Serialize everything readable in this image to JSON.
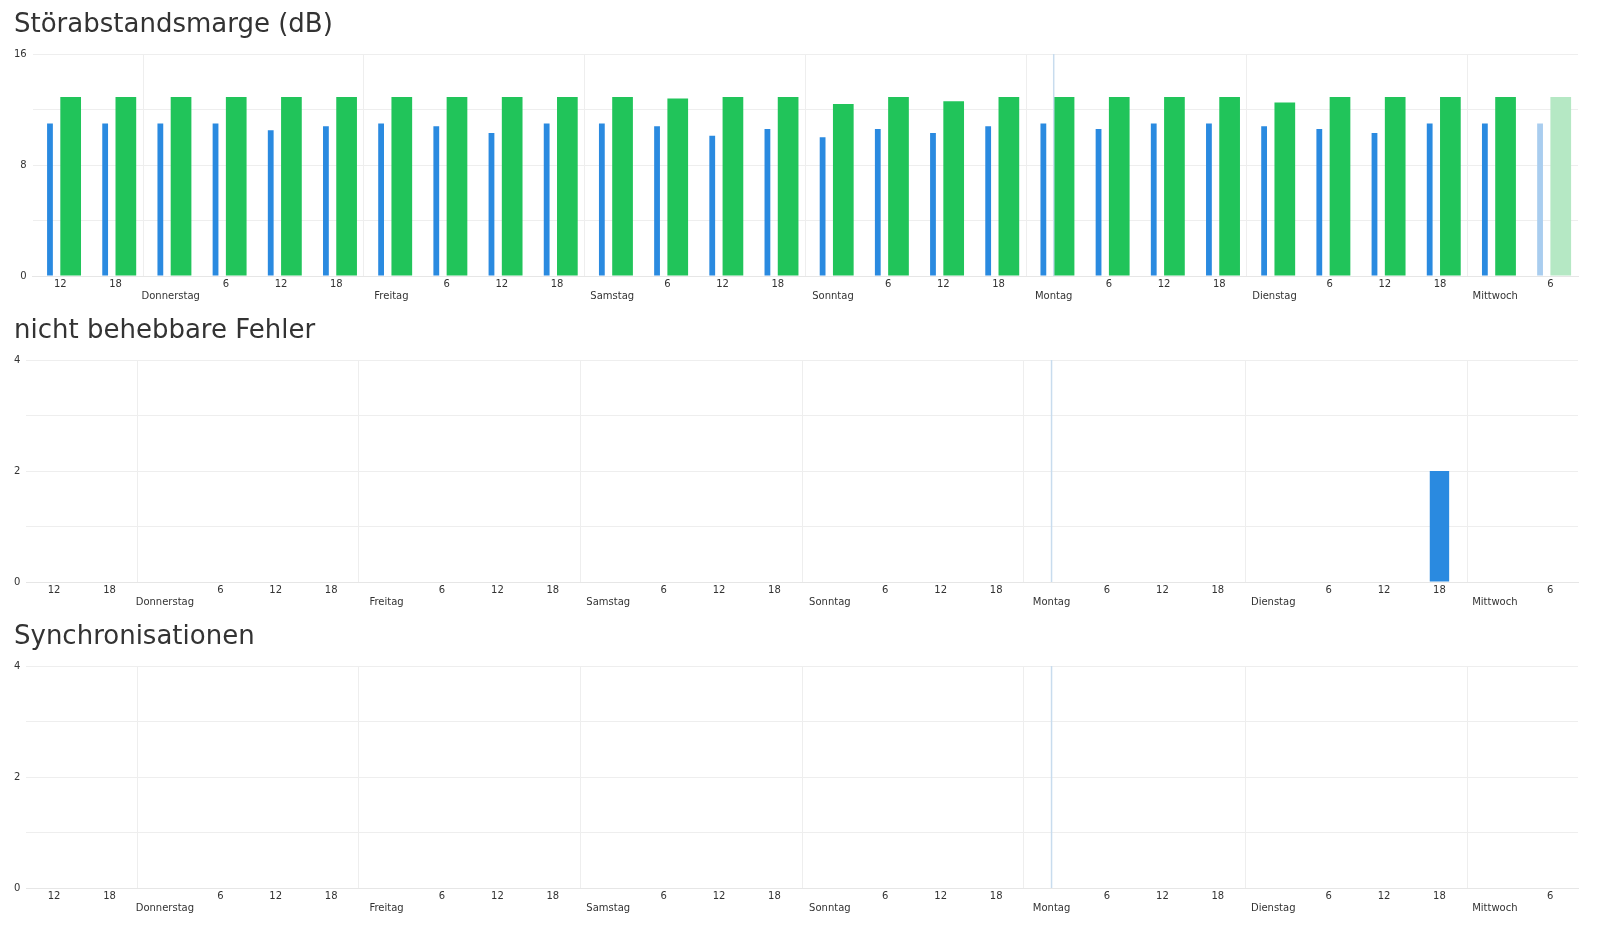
{
  "chart_data": [
    {
      "type": "bar",
      "title": "Störabstandsmarge (dB)",
      "categories": [
        "12",
        "18",
        "Donnerstag",
        "6",
        "12",
        "18",
        "Freitag",
        "6",
        "12",
        "18",
        "Samstag",
        "6",
        "12",
        "18",
        "Sonntag",
        "6",
        "12",
        "18",
        "Montag",
        "6",
        "12",
        "18",
        "Dienstag",
        "6",
        "12",
        "18",
        "Mittwoch",
        "6"
      ],
      "series": [
        {
          "colors": [
            "#2a8ae0",
            "#2a8ae0",
            "#2a8ae0",
            "#2a8ae0",
            "#2a8ae0",
            "#2a8ae0",
            "#2a8ae0",
            "#2a8ae0",
            "#2a8ae0",
            "#2a8ae0",
            "#2a8ae0",
            "#2a8ae0",
            "#2a8ae0",
            "#2a8ae0",
            "#2a8ae0",
            "#2a8ae0",
            "#2a8ae0",
            "#2a8ae0",
            "#2a8ae0",
            "#2a8ae0",
            "#2a8ae0",
            "#2a8ae0",
            "#2a8ae0",
            "#2a8ae0",
            "#2a8ae0",
            "#2a8ae0",
            "#2a8ae0",
            "#a9cdef"
          ],
          "values": [
            11.0,
            11.0,
            11.0,
            11.0,
            10.5,
            10.8,
            11.0,
            10.8,
            10.3,
            11.0,
            11.0,
            10.8,
            10.1,
            10.6,
            10.0,
            10.6,
            10.3,
            10.8,
            11.0,
            10.6,
            11.0,
            11.0,
            10.8,
            10.6,
            10.3,
            11.0,
            11.0,
            11.0
          ]
        },
        {
          "colors": [
            "#21c45a",
            "#21c45a",
            "#21c45a",
            "#21c45a",
            "#21c45a",
            "#21c45a",
            "#21c45a",
            "#21c45a",
            "#21c45a",
            "#21c45a",
            "#21c45a",
            "#21c45a",
            "#21c45a",
            "#21c45a",
            "#21c45a",
            "#21c45a",
            "#21c45a",
            "#21c45a",
            "#21c45a",
            "#21c45a",
            "#21c45a",
            "#21c45a",
            "#21c45a",
            "#21c45a",
            "#21c45a",
            "#21c45a",
            "#21c45a",
            "#b5e8c4"
          ],
          "values": [
            12.9,
            12.9,
            12.9,
            12.9,
            12.9,
            12.9,
            12.9,
            12.9,
            12.9,
            12.9,
            12.9,
            12.8,
            12.9,
            12.9,
            12.4,
            12.9,
            12.6,
            12.9,
            12.9,
            12.9,
            12.9,
            12.9,
            12.5,
            12.9,
            12.9,
            12.9,
            12.9,
            12.9
          ]
        }
      ],
      "ylim": [
        0,
        16
      ],
      "yticks": [
        0,
        {
          "value": 4,
          "label": null
        },
        8,
        {
          "value": 12,
          "label": null
        },
        16
      ],
      "grid": true,
      "legend": false,
      "ref_lines": [
        {
          "axis": "x",
          "value": "Montag",
          "color": "#c8dcee"
        }
      ]
    },
    {
      "type": "bar",
      "title": "nicht behebbare Fehler",
      "categories": [
        "12",
        "18",
        "Donnerstag",
        "6",
        "12",
        "18",
        "Freitag",
        "6",
        "12",
        "18",
        "Samstag",
        "6",
        "12",
        "18",
        "Sonntag",
        "6",
        "12",
        "18",
        "Montag",
        "6",
        "12",
        "18",
        "Dienstag",
        "6",
        "12",
        "18",
        "Mittwoch",
        "6"
      ],
      "series": [
        {
          "color": "#2a8ae0",
          "values": [
            0,
            0,
            0,
            0,
            0,
            0,
            0,
            0,
            0,
            0,
            0,
            0,
            0,
            0,
            0,
            0,
            0,
            0,
            0,
            0,
            0,
            0,
            0,
            0,
            0,
            2,
            0,
            0
          ]
        }
      ],
      "ylim": [
        0,
        4
      ],
      "yticks": [
        0,
        {
          "value": 1,
          "label": null
        },
        2,
        {
          "value": 3,
          "label": null
        },
        4
      ],
      "grid": true,
      "legend": false,
      "ref_lines": [
        {
          "axis": "x",
          "value": "Montag",
          "color": "#c8dcee"
        }
      ]
    },
    {
      "type": "bar",
      "title": "Synchronisationen",
      "categories": [
        "12",
        "18",
        "Donnerstag",
        "6",
        "12",
        "18",
        "Freitag",
        "6",
        "12",
        "18",
        "Samstag",
        "6",
        "12",
        "18",
        "Sonntag",
        "6",
        "12",
        "18",
        "Montag",
        "6",
        "12",
        "18",
        "Dienstag",
        "6",
        "12",
        "18",
        "Mittwoch",
        "6"
      ],
      "series": [
        {
          "color": "#2a8ae0",
          "values": [
            0,
            0,
            0,
            0,
            0,
            0,
            0,
            0,
            0,
            0,
            0,
            0,
            0,
            0,
            0,
            0,
            0,
            0,
            0,
            0,
            0,
            0,
            0,
            0,
            0,
            0,
            0,
            0
          ]
        }
      ],
      "ylim": [
        0,
        4
      ],
      "yticks": [
        0,
        {
          "value": 1,
          "label": null
        },
        2,
        {
          "value": 3,
          "label": null
        },
        4
      ],
      "grid": true,
      "legend": false,
      "ref_lines": [
        {
          "axis": "x",
          "value": "Montag",
          "color": "#c8dcee"
        }
      ]
    }
  ]
}
